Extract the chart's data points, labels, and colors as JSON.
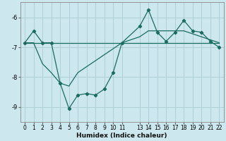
{
  "xlabel": "Humidex (Indice chaleur)",
  "background_color": "#cce8ee",
  "grid_color": "#b0d0d8",
  "line_color": "#1a6b60",
  "xlim": [
    -0.5,
    22.5
  ],
  "ylim": [
    -9.5,
    -5.5
  ],
  "yticks": [
    -9,
    -8,
    -7,
    -6
  ],
  "xticks": [
    0,
    1,
    2,
    3,
    4,
    5,
    6,
    7,
    8,
    9,
    10,
    11,
    13,
    14,
    15,
    16,
    17,
    18,
    19,
    20,
    21,
    22
  ],
  "xtick_labels": [
    "0",
    "1",
    "2",
    "3",
    "4",
    "5",
    "6",
    "7",
    "8",
    "9",
    "10",
    "11",
    "13",
    "14",
    "15",
    "16",
    "17",
    "18",
    "19",
    "20",
    "21",
    "22"
  ],
  "line1_x": [
    0,
    1,
    2,
    3,
    4,
    5,
    6,
    7,
    8,
    9,
    10,
    11,
    13,
    14,
    15,
    16,
    17,
    18,
    19,
    20,
    21,
    22
  ],
  "line1_y": [
    -6.85,
    -6.85,
    -6.85,
    -6.85,
    -6.85,
    -6.85,
    -6.85,
    -6.85,
    -6.85,
    -6.85,
    -6.85,
    -6.85,
    -6.85,
    -6.85,
    -6.85,
    -6.85,
    -6.85,
    -6.85,
    -6.85,
    -6.85,
    -6.85,
    -6.85
  ],
  "line2_x": [
    0,
    1,
    2,
    3,
    4,
    5,
    6,
    7,
    8,
    9,
    10,
    11,
    13,
    14,
    15,
    16,
    17,
    18,
    19,
    20,
    21,
    22
  ],
  "line2_y": [
    -6.85,
    -6.85,
    -7.55,
    -7.85,
    -8.2,
    -8.3,
    -7.85,
    -7.65,
    -7.45,
    -7.25,
    -7.05,
    -6.85,
    -6.65,
    -6.45,
    -6.45,
    -6.45,
    -6.45,
    -6.45,
    -6.55,
    -6.65,
    -6.75,
    -6.85
  ],
  "line3_x": [
    0,
    1,
    2,
    3,
    4,
    5,
    6,
    7,
    8,
    9,
    10,
    11,
    13,
    14,
    15,
    16,
    17,
    18,
    19,
    20,
    21,
    22
  ],
  "line3_y": [
    -6.85,
    -6.45,
    -6.85,
    -6.85,
    -8.2,
    -9.05,
    -8.6,
    -8.55,
    -8.6,
    -8.4,
    -7.85,
    -6.85,
    -6.3,
    -5.75,
    -6.5,
    -6.8,
    -6.5,
    -6.1,
    -6.45,
    -6.5,
    -6.8,
    -7.0
  ]
}
